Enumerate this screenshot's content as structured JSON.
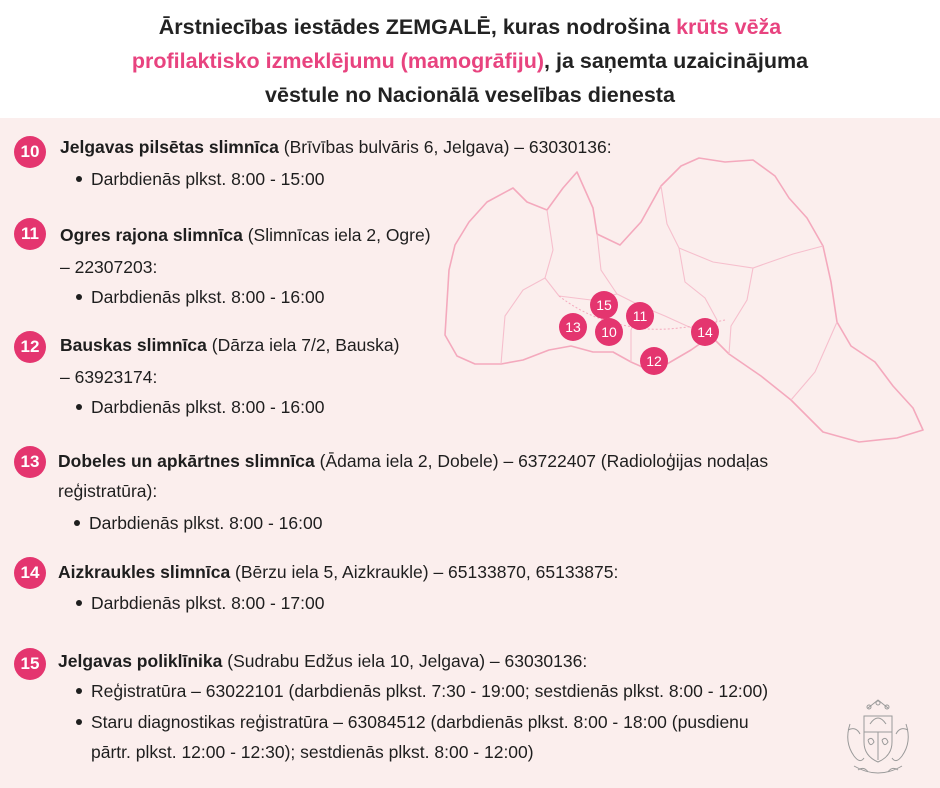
{
  "header": {
    "title_part1": "Ārstniecības iestādes ZEMGALĒ, kuras nodrošina ",
    "title_highlight_1": "krūts vēža",
    "title_highlight_2": "profilaktisko izmeklējumu (mamogrāfiju)",
    "title_part2": ", ja saņemta uzaicinājuma",
    "title_part3": "vēstule no Nacionālā veselības dienesta"
  },
  "colors": {
    "accent": "#e4356f",
    "title_highlight": "#e8437f",
    "background": "#fbeeed"
  },
  "map": {
    "markers": [
      {
        "label": "15"
      },
      {
        "label": "11"
      },
      {
        "label": "13"
      },
      {
        "label": "10"
      },
      {
        "label": "14"
      },
      {
        "label": "12"
      }
    ]
  },
  "entries": [
    {
      "number": "10",
      "name": "Jelgavas pilsētas slimnīca",
      "details": " (Brīvības bulvāris 6, Jelgava) – 63030136:",
      "bullets": [
        "Darbdienās plkst. 8:00 - 15:00"
      ]
    },
    {
      "number": "11",
      "name": "Ogres rajona slimnīca",
      "details": " (Slimnīcas iela 2, Ogre)",
      "details_cont": "– 22307203:",
      "bullets": [
        "Darbdienās plkst. 8:00 - 16:00"
      ]
    },
    {
      "number": "12",
      "name": "Bauskas slimnīca",
      "details": " (Dārza iela 7/2, Bauska)",
      "details_cont": "– 63923174:",
      "bullets": [
        "Darbdienās plkst. 8:00 - 16:00"
      ]
    },
    {
      "number": "13",
      "name": "Dobeles un apkārtnes slimnīca",
      "details": " (Ādama iela 2, Dobele) – 63722407 (Radioloģijas nodaļas",
      "details_cont": "reģistratūra):",
      "bullets": [
        "Darbdienās plkst. 8:00 - 16:00"
      ]
    },
    {
      "number": "14",
      "name": "Aizkraukles slimnīca",
      "details": " (Bērzu iela 5, Aizkraukle) – 65133870, 65133875:",
      "bullets": [
        "Darbdienās plkst. 8:00 - 17:00"
      ]
    },
    {
      "number": "15",
      "name": "Jelgavas poliklīnika",
      "details": " (Sudrabu Edžus iela 10, Jelgava) – 63030136:",
      "bullets": [
        "Reģistratūra – 63022101 (darbdienās plkst. 7:30 - 19:00; sestdienās plkst. 8:00 - 12:00)",
        "Staru diagnostikas reģistratūra – 63084512 (darbdienās plkst. 8:00 - 18:00 (pusdienu"
      ],
      "bullet_cont": "pārtr. plkst. 12:00 - 12:30); sestdienās plkst. 8:00 - 12:00)"
    }
  ],
  "emblem": {
    "icon": "latvia-coat-of-arms-icon"
  }
}
